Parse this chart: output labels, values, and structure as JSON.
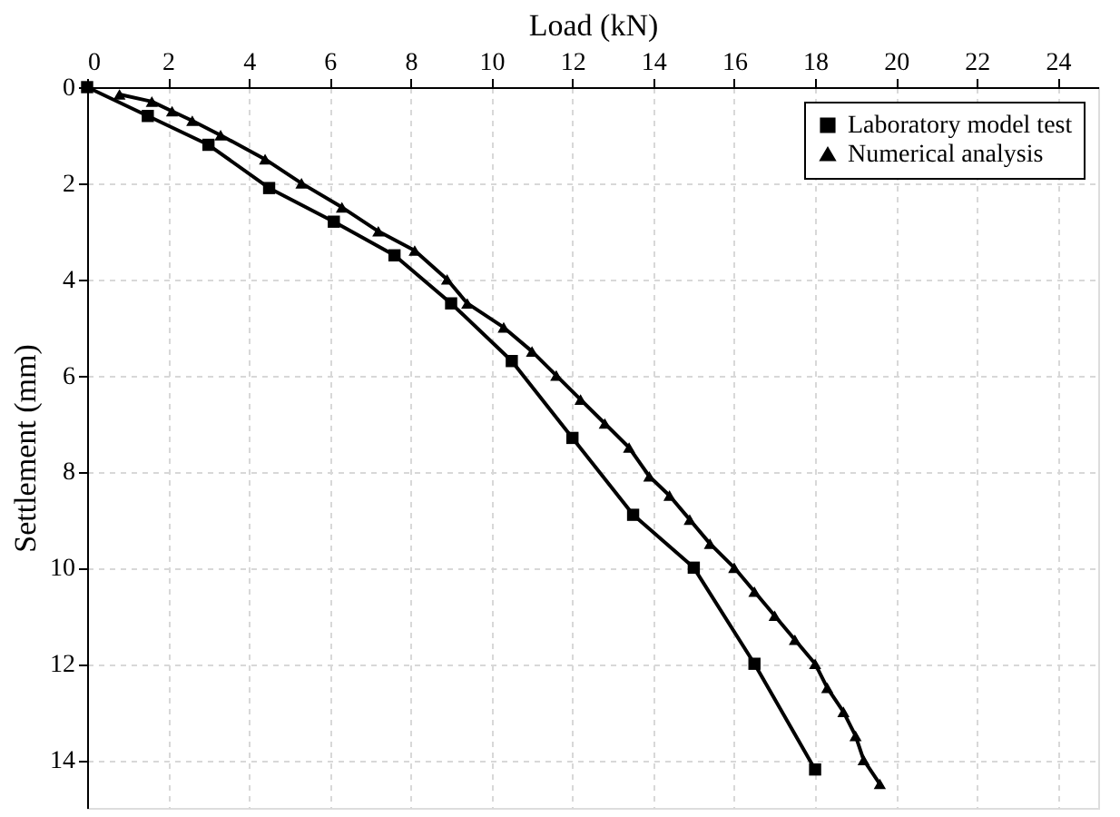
{
  "chart_data": {
    "type": "line",
    "xlabel": "Load (kN)",
    "ylabel": "Settlement (mm)",
    "xlim": [
      0,
      25
    ],
    "ylim": [
      15,
      0
    ],
    "xticks": [
      0,
      2,
      4,
      6,
      8,
      10,
      12,
      14,
      16,
      18,
      20,
      22,
      24
    ],
    "yticks": [
      0,
      2,
      4,
      6,
      8,
      10,
      12,
      14
    ],
    "grid": true,
    "legend": "top right",
    "line_style": "solid",
    "series": [
      {
        "name": "Laboratory model test",
        "color": "#000000",
        "marker": "square",
        "x": [
          0,
          1.5,
          3.0,
          4.5,
          6.1,
          7.6,
          9.0,
          10.5,
          12.0,
          13.5,
          15.0,
          16.5,
          18.0
        ],
        "values": [
          0,
          0.6,
          1.2,
          2.1,
          2.8,
          3.5,
          4.5,
          5.7,
          7.3,
          8.9,
          10.0,
          12.0,
          14.2
        ]
      },
      {
        "name": "Numerical analysis",
        "color": "#000000",
        "marker": "triangle",
        "x": [
          0.8,
          1.6,
          2.1,
          2.6,
          3.3,
          4.4,
          5.3,
          6.3,
          7.2,
          8.1,
          8.9,
          9.4,
          10.3,
          11.0,
          11.6,
          12.2,
          12.8,
          13.4,
          13.9,
          14.4,
          14.9,
          15.4,
          16.0,
          16.5,
          17.0,
          17.5,
          18.0,
          18.3,
          18.7,
          19.0,
          19.2,
          19.6
        ],
        "values": [
          0.15,
          0.3,
          0.5,
          0.7,
          1.0,
          1.5,
          2.0,
          2.5,
          3.0,
          3.4,
          4.0,
          4.5,
          5.0,
          5.5,
          6.0,
          6.5,
          7.0,
          7.5,
          8.1,
          8.5,
          9.0,
          9.5,
          10.0,
          10.5,
          11.0,
          11.5,
          12.0,
          12.5,
          13.0,
          13.5,
          14.0,
          14.5
        ]
      }
    ]
  }
}
